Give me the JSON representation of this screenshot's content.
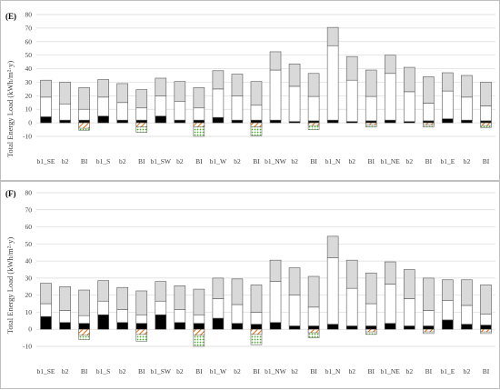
{
  "figure": {
    "background": "#ffffff"
  },
  "colors": {
    "segment_bottom": "#000000",
    "segment_mid": "#ffffff",
    "segment_top": "#d9d9d9",
    "outline": "#595959",
    "hatch_orange": "#e36c09",
    "hatch_green": "#4ea72e"
  },
  "chart_data": [
    {
      "panel_label": "(E)",
      "type": "bar",
      "stacked": true,
      "ylabel": "Total Energy Load (kWh/m²·y)",
      "ylim": [
        -10,
        80
      ],
      "yticks": [
        -10,
        0,
        10,
        20,
        30,
        40,
        50,
        60,
        70,
        80
      ],
      "grid": true,
      "categories": [
        "b1_SE",
        "b2",
        "BI",
        "b1_S",
        "b2",
        "BI",
        "b1_SW",
        "b2",
        "BI",
        "b1_W",
        "b2",
        "BI",
        "b1_NW",
        "b2",
        "BI",
        "b1_N",
        "b2",
        "BI",
        "b1_NE",
        "b2",
        "BI",
        "b1_E",
        "b2",
        "BI"
      ],
      "bottom": [
        4.5,
        2,
        2,
        5,
        2,
        2,
        5,
        2,
        2,
        4,
        2,
        2,
        2,
        1,
        1.5,
        2,
        1,
        1.5,
        2,
        1,
        1.5,
        3,
        2,
        1.5
      ],
      "middle": [
        14.5,
        12,
        8,
        14,
        13,
        9,
        15,
        14,
        9,
        21,
        18,
        11,
        37,
        26,
        18,
        55,
        30.5,
        18,
        34.5,
        22,
        13,
        20.5,
        17,
        11
      ],
      "top": [
        12.5,
        16,
        16,
        13,
        14,
        13.5,
        13,
        14.5,
        15,
        13.5,
        16,
        17.5,
        13.5,
        16.5,
        17,
        13.5,
        17.5,
        19.5,
        13.5,
        18,
        19.5,
        13.5,
        16,
        17.5
      ],
      "negative_orange": [
        0,
        0,
        -4,
        0,
        0,
        -3,
        0,
        0,
        -3,
        0,
        0,
        -3,
        0,
        0,
        -2,
        0,
        0,
        -1.5,
        0,
        0,
        -1.5,
        0,
        0,
        -2
      ],
      "negative_green": [
        0,
        0,
        -5.5,
        0,
        0,
        -7,
        0,
        0,
        -10,
        0,
        0,
        -9.5,
        0,
        0,
        -5,
        0,
        0,
        -3,
        0,
        0,
        -3,
        0,
        0,
        -3.5
      ]
    },
    {
      "panel_label": "(F)",
      "type": "bar",
      "stacked": true,
      "ylabel": "Total Energy Load (kWh/m²·y)",
      "ylim": [
        -10,
        80
      ],
      "yticks": [
        -10,
        0,
        10,
        20,
        30,
        40,
        50,
        60,
        70,
        80
      ],
      "grid": true,
      "categories": [
        "b1_SE",
        "b2",
        "BI",
        "b1_S",
        "b2",
        "BI",
        "b1_SW",
        "b2",
        "BI",
        "b1_W",
        "b2",
        "BI",
        "b1_NW",
        "b2",
        "BI",
        "b1_N",
        "b2",
        "BI",
        "b1_NE",
        "b2",
        "BI",
        "b1_E",
        "b2",
        "BI"
      ],
      "bottom": [
        7.5,
        4,
        3.5,
        8.5,
        4,
        3.5,
        8.5,
        4,
        3.5,
        6.5,
        3.5,
        3,
        4,
        2,
        2,
        3,
        2,
        2,
        3.5,
        2,
        2,
        5.5,
        3,
        2.5
      ],
      "middle": [
        7.5,
        7,
        4.5,
        8,
        7.5,
        5,
        8,
        7.5,
        5,
        11.5,
        11,
        7,
        24,
        18,
        11,
        39,
        22,
        13,
        23,
        16,
        9,
        11.5,
        11,
        6.5
      ],
      "top": [
        12,
        14,
        15,
        12,
        13,
        14,
        11.5,
        14,
        15,
        12,
        15,
        16,
        12.5,
        16,
        18,
        12.5,
        16.5,
        18,
        13,
        17,
        19,
        12,
        15,
        17
      ],
      "negative_orange": [
        0,
        0,
        -3.5,
        0,
        0,
        -3,
        0,
        0,
        -3.5,
        0,
        0,
        -3,
        0,
        0,
        -2,
        0,
        0,
        -1.5,
        0,
        0,
        -1.5,
        0,
        0,
        -1.5
      ],
      "negative_green": [
        0,
        0,
        -6,
        0,
        0,
        -7,
        0,
        0,
        -10,
        0,
        0,
        -9,
        0,
        0,
        -5,
        0,
        0,
        -3,
        0,
        0,
        -2.5,
        0,
        0,
        -2.5
      ]
    }
  ]
}
